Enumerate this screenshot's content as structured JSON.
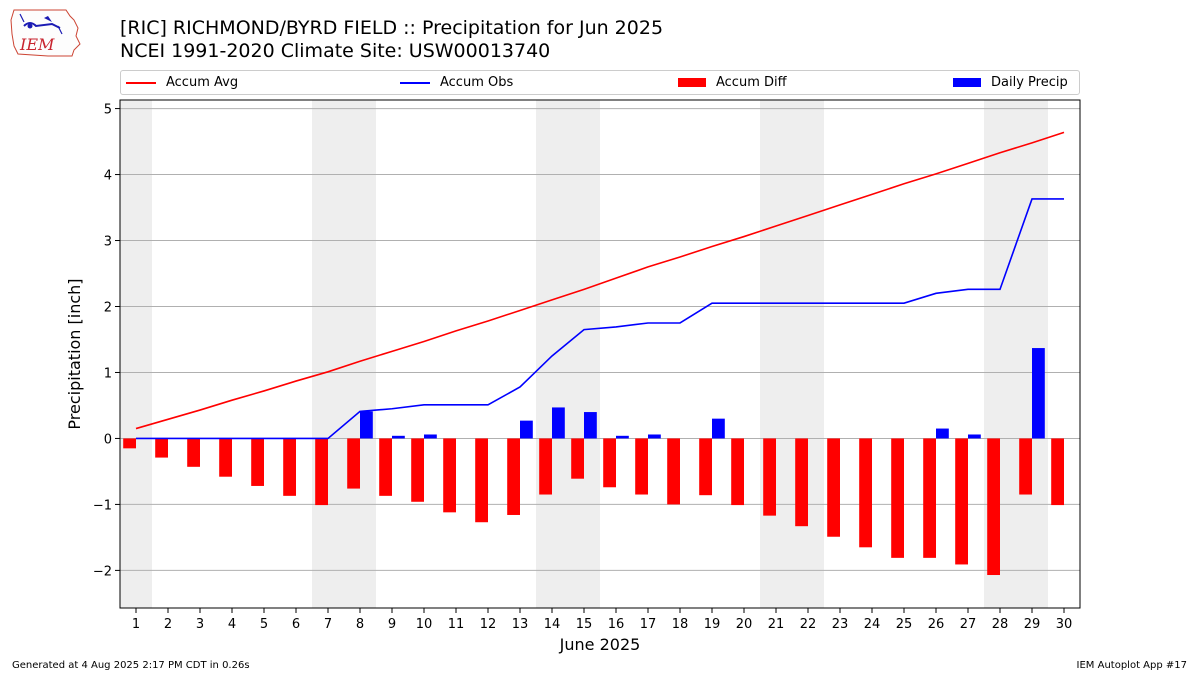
{
  "header": {
    "title_line1": "[RIC] RICHMOND/BYRD FIELD :: Precipitation for Jun 2025",
    "title_line2": "NCEI 1991-2020 Climate Site: USW00013740",
    "logo_text": "IEM"
  },
  "footer": {
    "left": "Generated at 4 Aug 2025 2:17 PM CDT in 0.26s",
    "right": "IEM Autoplot App #17"
  },
  "colors": {
    "avg": "#ff0000",
    "obs": "#0000ff",
    "diff": "#ff0000",
    "daily": "#0000ff",
    "weekend_shade": "#eeeeee",
    "grid": "#b0b0b0"
  },
  "chart_data": {
    "type": "bar",
    "xlabel": "June 2025",
    "ylabel": "Precipitation [inch]",
    "xlim": [
      0.5,
      30.5
    ],
    "ylim": [
      -2.57,
      5.13
    ],
    "yticks": [
      -2,
      -1,
      0,
      1,
      2,
      3,
      4,
      5
    ],
    "x": [
      1,
      2,
      3,
      4,
      5,
      6,
      7,
      8,
      9,
      10,
      11,
      12,
      13,
      14,
      15,
      16,
      17,
      18,
      19,
      20,
      21,
      22,
      23,
      24,
      25,
      26,
      27,
      28,
      29,
      30
    ],
    "shaded_weekend_days": [
      1,
      7,
      8,
      14,
      15,
      21,
      22,
      28,
      29
    ],
    "grid": true,
    "legend_position": "top",
    "series": [
      {
        "name": "Accum Avg",
        "kind": "line",
        "values": [
          0.15,
          0.29,
          0.43,
          0.58,
          0.72,
          0.87,
          1.01,
          1.17,
          1.32,
          1.47,
          1.63,
          1.78,
          1.94,
          2.1,
          2.26,
          2.43,
          2.6,
          2.75,
          2.91,
          3.06,
          3.22,
          3.38,
          3.54,
          3.7,
          3.86,
          4.01,
          4.17,
          4.33,
          4.48,
          4.64
        ]
      },
      {
        "name": "Accum Obs",
        "kind": "line",
        "values": [
          0,
          0,
          0,
          0,
          0,
          0,
          0,
          0.41,
          0.45,
          0.51,
          0.51,
          0.51,
          0.78,
          1.25,
          1.65,
          1.69,
          1.75,
          1.75,
          2.05,
          2.05,
          2.05,
          2.05,
          2.05,
          2.05,
          2.05,
          2.2,
          2.26,
          2.26,
          3.63,
          3.63
        ]
      },
      {
        "name": "Accum Diff",
        "kind": "bar",
        "values": [
          -0.15,
          -0.29,
          -0.43,
          -0.58,
          -0.72,
          -0.87,
          -1.01,
          -0.76,
          -0.87,
          -0.96,
          -1.12,
          -1.27,
          -1.16,
          -0.85,
          -0.61,
          -0.74,
          -0.85,
          -1.0,
          -0.86,
          -1.01,
          -1.17,
          -1.33,
          -1.49,
          -1.65,
          -1.81,
          -1.81,
          -1.91,
          -2.07,
          -0.85,
          -1.01
        ]
      },
      {
        "name": "Daily Precip",
        "kind": "bar",
        "values": [
          0,
          0,
          0,
          0,
          0,
          0,
          0,
          0.41,
          0.04,
          0.06,
          0,
          0,
          0.27,
          0.47,
          0.4,
          0.04,
          0.06,
          0,
          0.3,
          0,
          0,
          0,
          0,
          0,
          0,
          0.15,
          0.06,
          0,
          1.37,
          0
        ]
      }
    ]
  }
}
